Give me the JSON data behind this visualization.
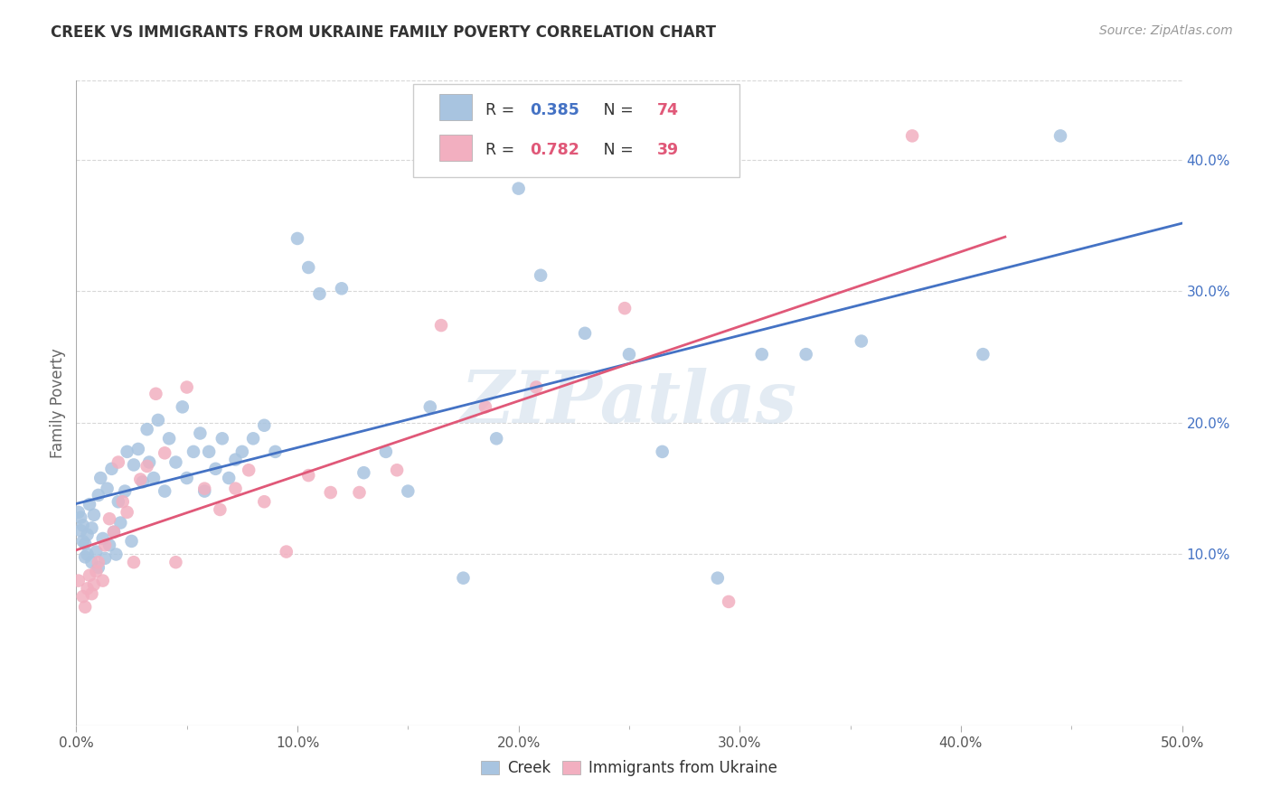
{
  "title": "CREEK VS IMMIGRANTS FROM UKRAINE FAMILY POVERTY CORRELATION CHART",
  "source_text": "Source: ZipAtlas.com",
  "ylabel": "Family Poverty",
  "xlim": [
    0.0,
    0.5
  ],
  "ylim": [
    -0.03,
    0.46
  ],
  "xticks": [
    0.0,
    0.1,
    0.2,
    0.3,
    0.4,
    0.5
  ],
  "xticklabels": [
    "0.0%",
    "10.0%",
    "20.0%",
    "30.0%",
    "40.0%",
    "50.0%"
  ],
  "yticks_right": [
    0.1,
    0.2,
    0.3,
    0.4
  ],
  "ytick_right_labels": [
    "10.0%",
    "20.0%",
    "30.0%",
    "40.0%"
  ],
  "creek_color": "#a8c4e0",
  "ukraine_color": "#f2afc0",
  "creek_line_color": "#4472c4",
  "ukraine_line_color": "#e05878",
  "creek_R": 0.385,
  "creek_N": 74,
  "ukraine_R": 0.782,
  "ukraine_N": 39,
  "legend_R_color": "#4472c4",
  "legend_N_color": "#e05878",
  "watermark": "ZIPatlas",
  "watermark_color": "#c8d8e8",
  "background_color": "#ffffff",
  "grid_color": "#d8d8d8",
  "creek_x": [
    0.001,
    0.002,
    0.002,
    0.003,
    0.003,
    0.004,
    0.004,
    0.005,
    0.005,
    0.006,
    0.007,
    0.007,
    0.008,
    0.009,
    0.01,
    0.01,
    0.011,
    0.012,
    0.013,
    0.014,
    0.015,
    0.016,
    0.017,
    0.018,
    0.019,
    0.02,
    0.022,
    0.023,
    0.025,
    0.026,
    0.028,
    0.03,
    0.032,
    0.033,
    0.035,
    0.037,
    0.04,
    0.042,
    0.045,
    0.048,
    0.05,
    0.053,
    0.056,
    0.058,
    0.06,
    0.063,
    0.066,
    0.069,
    0.072,
    0.075,
    0.08,
    0.085,
    0.09,
    0.1,
    0.105,
    0.11,
    0.12,
    0.13,
    0.14,
    0.15,
    0.16,
    0.175,
    0.19,
    0.2,
    0.21,
    0.23,
    0.25,
    0.265,
    0.29,
    0.31,
    0.33,
    0.355,
    0.41,
    0.445
  ],
  "creek_y": [
    0.132,
    0.118,
    0.128,
    0.11,
    0.122,
    0.098,
    0.108,
    0.115,
    0.1,
    0.138,
    0.094,
    0.12,
    0.13,
    0.102,
    0.145,
    0.09,
    0.158,
    0.112,
    0.097,
    0.15,
    0.107,
    0.165,
    0.117,
    0.1,
    0.14,
    0.124,
    0.148,
    0.178,
    0.11,
    0.168,
    0.18,
    0.155,
    0.195,
    0.17,
    0.158,
    0.202,
    0.148,
    0.188,
    0.17,
    0.212,
    0.158,
    0.178,
    0.192,
    0.148,
    0.178,
    0.165,
    0.188,
    0.158,
    0.172,
    0.178,
    0.188,
    0.198,
    0.178,
    0.34,
    0.318,
    0.298,
    0.302,
    0.162,
    0.178,
    0.148,
    0.212,
    0.082,
    0.188,
    0.378,
    0.312,
    0.268,
    0.252,
    0.178,
    0.082,
    0.252,
    0.252,
    0.262,
    0.252,
    0.418
  ],
  "ukraine_x": [
    0.001,
    0.003,
    0.004,
    0.005,
    0.006,
    0.007,
    0.008,
    0.009,
    0.01,
    0.012,
    0.013,
    0.015,
    0.017,
    0.019,
    0.021,
    0.023,
    0.026,
    0.029,
    0.032,
    0.036,
    0.04,
    0.045,
    0.05,
    0.058,
    0.065,
    0.072,
    0.078,
    0.085,
    0.095,
    0.105,
    0.115,
    0.128,
    0.145,
    0.165,
    0.185,
    0.208,
    0.248,
    0.295,
    0.378
  ],
  "ukraine_y": [
    0.08,
    0.068,
    0.06,
    0.074,
    0.084,
    0.07,
    0.077,
    0.087,
    0.094,
    0.08,
    0.107,
    0.127,
    0.117,
    0.17,
    0.14,
    0.132,
    0.094,
    0.157,
    0.167,
    0.222,
    0.177,
    0.094,
    0.227,
    0.15,
    0.134,
    0.15,
    0.164,
    0.14,
    0.102,
    0.16,
    0.147,
    0.147,
    0.164,
    0.274,
    0.212,
    0.227,
    0.287,
    0.064,
    0.418
  ]
}
